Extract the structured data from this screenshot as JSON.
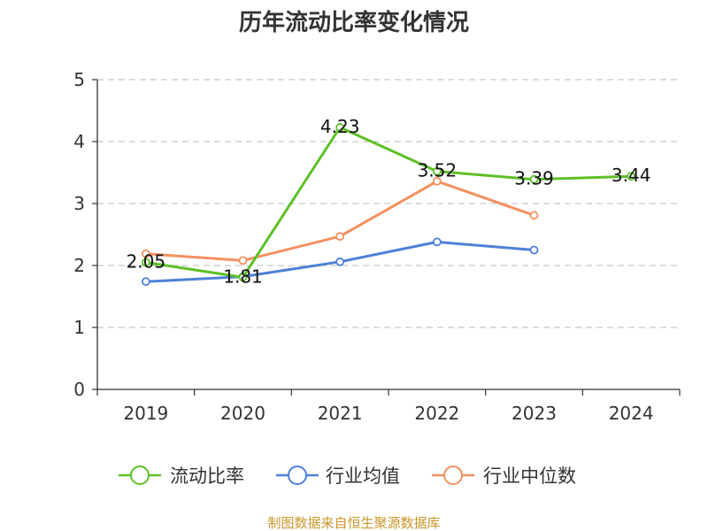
{
  "chart_data": {
    "type": "line",
    "title": "历年流动比率变化情况",
    "categories": [
      "2019",
      "2020",
      "2021",
      "2022",
      "2023",
      "2024"
    ],
    "ylim": [
      0,
      5
    ],
    "yticks": [
      "0",
      "1",
      "2",
      "3",
      "4",
      "5"
    ],
    "grid": true,
    "legend_position": "bottom",
    "series": [
      {
        "name": "流动比率",
        "color": "#5ec027",
        "values": [
          2.05,
          1.81,
          4.23,
          3.52,
          3.39,
          3.44
        ],
        "labels": [
          "2.05",
          "1.81",
          "4.23",
          "3.52",
          "3.39",
          "3.44"
        ]
      },
      {
        "name": "行业均值",
        "color": "#4e80d8",
        "values": [
          1.74,
          1.82,
          2.06,
          2.38,
          2.25,
          null
        ]
      },
      {
        "name": "行业中位数",
        "color": "#f39060",
        "values": [
          2.19,
          2.08,
          2.47,
          3.36,
          2.81,
          null
        ]
      }
    ]
  },
  "source": "制图数据来自恒生聚源数据库"
}
